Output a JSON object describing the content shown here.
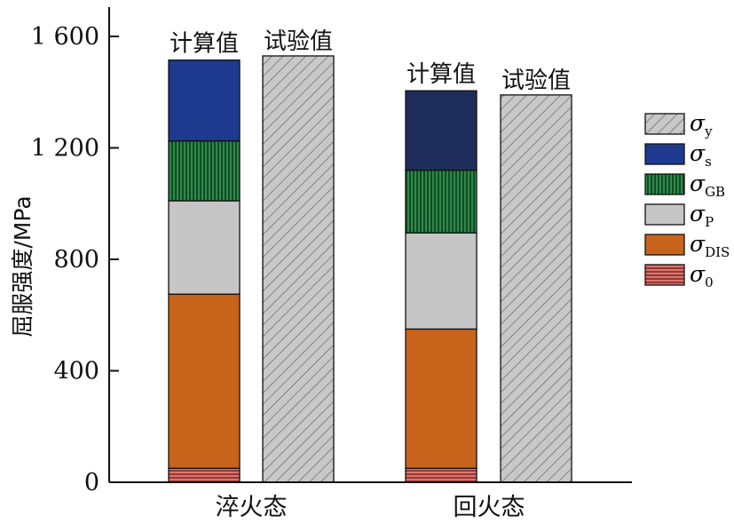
{
  "chart_data": {
    "type": "bar",
    "title": "",
    "ylabel": "屈服强度/MPa",
    "xlabel": "",
    "ylim": [
      0,
      1700
    ],
    "yticks": [
      {
        "value": 0,
        "label": "0"
      },
      {
        "value": 400,
        "label": "400"
      },
      {
        "value": 800,
        "label": "800"
      },
      {
        "value": 1200,
        "label": "1 200"
      },
      {
        "value": 1600,
        "label": "1 600"
      }
    ],
    "categories": [
      "淬火态",
      "回火态"
    ],
    "bar_labels": {
      "calculated": "计算值",
      "experimental": "试验值"
    },
    "legend_position": "right",
    "series": [
      {
        "key": "s0",
        "name": "σ",
        "sub": "0",
        "color": "#c0504d",
        "pattern": "horizontal-lines",
        "values": [
          50,
          50
        ]
      },
      {
        "key": "dis",
        "name": "σ",
        "sub": "DIS",
        "color": "#c8631b",
        "pattern": "solid",
        "values": [
          625,
          500
        ]
      },
      {
        "key": "p",
        "name": "σ",
        "sub": "P",
        "color": "#c6c6c6",
        "pattern": "solid",
        "values": [
          335,
          345
        ]
      },
      {
        "key": "gb",
        "name": "σ",
        "sub": "GB",
        "color": "#1e6b36",
        "pattern": "vertical-lines",
        "values": [
          215,
          225
        ]
      },
      {
        "key": "s",
        "name": "σ",
        "sub": "s",
        "color": "#1d3a8f",
        "pattern": "solid",
        "values": [
          290,
          285
        ],
        "colors": [
          "#1d3a8f",
          "#1f2d5c"
        ]
      }
    ],
    "experimental": {
      "key": "y",
      "name": "σ",
      "sub": "y",
      "color": "#c6c6c6",
      "pattern": "diagonal-hatch",
      "values": [
        1530,
        1390
      ]
    },
    "legend_order": [
      "y",
      "s",
      "gb",
      "p",
      "dis",
      "s0"
    ]
  }
}
